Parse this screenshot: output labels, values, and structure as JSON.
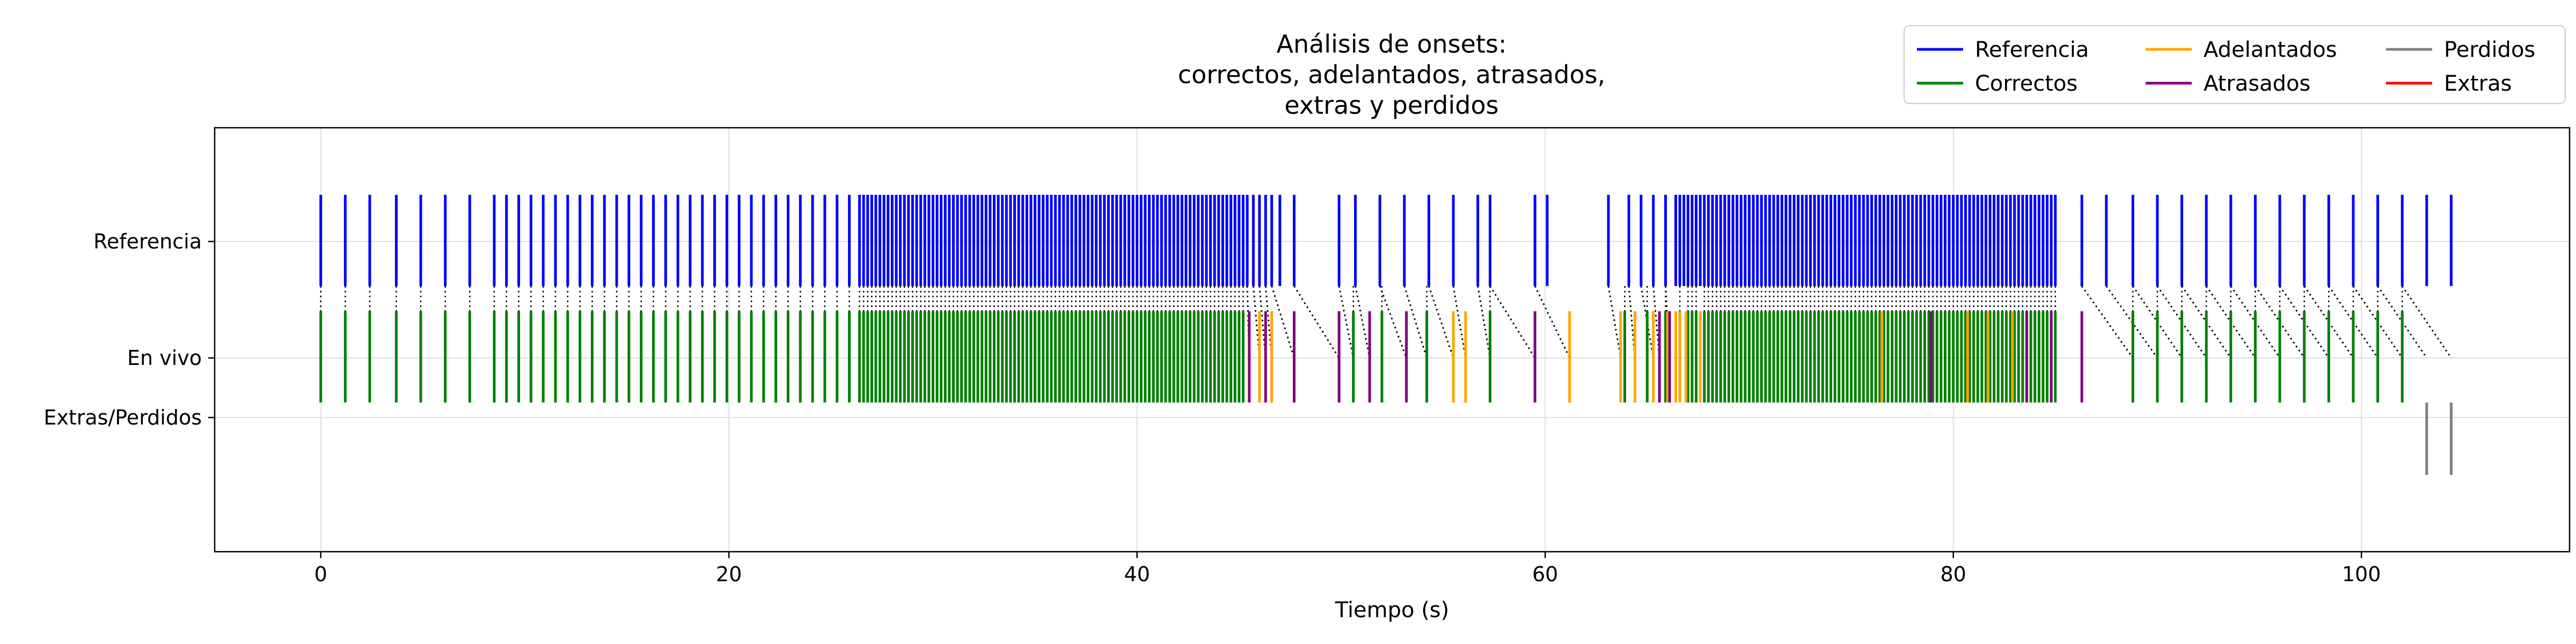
{
  "chart_data": {
    "type": "event-raster",
    "title_lines": [
      "Análisis de onsets:",
      "correctos, adelantados, atrasados,",
      "extras y perdidos"
    ],
    "xlabel": "Tiempo (s)",
    "xlim": [
      -5.2,
      110.2
    ],
    "x_ticks": [
      0,
      20,
      40,
      60,
      80,
      100
    ],
    "y_ticks": [
      "Referencia",
      "En vivo",
      "Extras/Perdidos"
    ],
    "grid": true,
    "legend_position": "top-right",
    "colors": {
      "Referencia": "#0000ff",
      "Correctos": "#008000",
      "Adelantados": "#ffa500",
      "Atrasados": "#800080",
      "Perdidos": "#808080",
      "Extras": "#ff0000",
      "match_line": "#000000"
    },
    "legend": [
      {
        "name": "Referencia",
        "color": "#0000ff"
      },
      {
        "name": "Correctos",
        "color": "#008000"
      },
      {
        "name": "Adelantados",
        "color": "#ffa500"
      },
      {
        "name": "Atrasados",
        "color": "#800080"
      },
      {
        "name": "Perdidos",
        "color": "#808080"
      },
      {
        "name": "Extras",
        "color": "#ff0000"
      }
    ],
    "series": {
      "referencia": [
        0.0,
        1.2,
        2.4,
        3.7,
        4.9,
        6.1,
        7.3,
        8.5,
        9.1,
        9.7,
        10.3,
        10.9,
        11.5,
        12.1,
        12.7,
        13.3,
        13.9,
        14.5,
        15.1,
        15.7,
        16.3,
        16.9,
        17.5,
        18.1,
        18.7,
        19.3,
        19.9,
        20.5,
        21.1,
        21.7,
        22.3,
        22.9,
        23.5,
        24.1,
        24.7,
        25.3,
        25.9,
        26.4,
        26.6,
        26.8,
        27.0,
        27.2,
        27.4,
        27.6,
        27.8,
        28.0,
        28.2,
        28.4,
        28.6,
        28.8,
        29.0,
        29.2,
        29.4,
        29.6,
        29.8,
        30.0,
        30.2,
        30.4,
        30.6,
        30.8,
        31.0,
        31.2,
        31.4,
        31.6,
        31.8,
        32.0,
        32.2,
        32.4,
        32.6,
        32.8,
        33.0,
        33.2,
        33.4,
        33.6,
        33.8,
        34.0,
        34.2,
        34.4,
        34.6,
        34.8,
        35.0,
        35.2,
        35.4,
        35.6,
        35.8,
        36.0,
        36.2,
        36.4,
        36.6,
        36.8,
        37.0,
        37.2,
        37.4,
        37.6,
        37.8,
        38.0,
        38.2,
        38.4,
        38.6,
        38.8,
        39.0,
        39.2,
        39.4,
        39.6,
        39.8,
        40.0,
        40.2,
        40.4,
        40.6,
        40.8,
        41.0,
        41.2,
        41.4,
        41.6,
        41.8,
        42.0,
        42.2,
        42.4,
        42.6,
        42.8,
        43.0,
        43.2,
        43.4,
        43.6,
        43.8,
        44.0,
        44.2,
        44.4,
        44.6,
        44.8,
        45.0,
        45.2,
        45.4,
        45.7,
        46.0,
        46.3,
        46.6,
        47.0,
        47.7,
        49.9,
        50.7,
        51.9,
        53.1,
        54.3,
        55.5,
        56.7,
        57.3,
        59.5,
        60.1,
        63.1,
        64.1,
        64.7,
        65.3,
        65.9,
        66.4,
        66.6,
        66.8,
        67.0,
        67.2,
        67.4,
        67.6,
        67.8,
        68.0,
        68.2,
        68.4,
        68.6,
        68.8,
        69.0,
        69.2,
        69.4,
        69.6,
        69.8,
        70.0,
        70.2,
        70.4,
        70.6,
        70.8,
        71.0,
        71.2,
        71.4,
        71.6,
        71.8,
        72.0,
        72.2,
        72.4,
        72.6,
        72.8,
        73.0,
        73.2,
        73.4,
        73.6,
        73.8,
        74.0,
        74.2,
        74.4,
        74.6,
        74.8,
        75.0,
        75.2,
        75.4,
        75.6,
        75.8,
        76.0,
        76.2,
        76.4,
        76.6,
        76.8,
        77.0,
        77.2,
        77.4,
        77.6,
        77.8,
        78.0,
        78.2,
        78.4,
        78.6,
        78.8,
        79.0,
        79.2,
        79.4,
        79.6,
        79.8,
        80.0,
        80.2,
        80.4,
        80.6,
        80.8,
        81.0,
        81.2,
        81.4,
        81.6,
        81.8,
        82.0,
        82.2,
        82.4,
        82.6,
        82.8,
        83.0,
        83.2,
        83.4,
        83.6,
        83.8,
        84.0,
        84.2,
        84.4,
        84.6,
        84.8,
        85.0,
        86.3,
        87.5,
        88.8,
        90.0,
        91.2,
        92.4,
        93.6,
        94.8,
        96.0,
        97.2,
        98.4,
        99.6,
        100.8,
        102.0,
        103.2,
        104.4
      ],
      "correctos": [
        0.0,
        1.2,
        2.4,
        3.7,
        4.9,
        6.1,
        7.3,
        8.5,
        9.1,
        9.7,
        10.3,
        10.9,
        11.5,
        12.1,
        12.7,
        13.3,
        13.9,
        14.5,
        15.1,
        15.7,
        16.3,
        16.9,
        17.5,
        18.1,
        18.7,
        19.3,
        19.9,
        20.5,
        21.1,
        21.7,
        22.3,
        22.9,
        23.5,
        24.1,
        24.7,
        25.3,
        25.9,
        26.4,
        26.6,
        26.8,
        27.0,
        27.2,
        27.4,
        27.6,
        27.8,
        28.0,
        28.2,
        28.4,
        28.6,
        28.8,
        29.0,
        29.2,
        29.4,
        29.6,
        29.8,
        30.0,
        30.2,
        30.4,
        30.6,
        30.8,
        31.0,
        31.2,
        31.4,
        31.6,
        31.8,
        32.0,
        32.2,
        32.4,
        32.6,
        32.8,
        33.0,
        33.2,
        33.4,
        33.6,
        33.8,
        34.0,
        34.2,
        34.4,
        34.6,
        34.8,
        35.0,
        35.2,
        35.4,
        35.6,
        35.8,
        36.0,
        36.2,
        36.4,
        36.6,
        36.8,
        37.0,
        37.2,
        37.4,
        37.6,
        37.8,
        38.0,
        38.2,
        38.4,
        38.6,
        38.8,
        39.0,
        39.2,
        39.4,
        39.6,
        39.8,
        40.0,
        40.2,
        40.4,
        40.6,
        40.8,
        41.0,
        41.2,
        41.4,
        41.6,
        41.8,
        42.0,
        42.2,
        42.4,
        42.6,
        42.8,
        43.0,
        43.2,
        43.4,
        43.6,
        43.8,
        44.0,
        44.2,
        44.4,
        44.6,
        44.8,
        45.0,
        45.2,
        50.6,
        52.0,
        54.2,
        57.3,
        63.9,
        65.0,
        65.9,
        66.6,
        67.0,
        67.2,
        67.4,
        67.8,
        68.0,
        68.2,
        68.4,
        68.6,
        68.8,
        69.0,
        69.2,
        69.4,
        69.6,
        69.8,
        70.0,
        70.2,
        70.4,
        70.6,
        70.8,
        71.0,
        71.2,
        71.4,
        71.6,
        71.8,
        72.0,
        72.2,
        72.4,
        72.6,
        72.8,
        73.0,
        73.2,
        73.4,
        73.6,
        73.8,
        74.0,
        74.2,
        74.4,
        74.6,
        74.8,
        75.0,
        75.2,
        75.4,
        75.6,
        75.8,
        76.0,
        76.2,
        76.4,
        76.6,
        76.8,
        77.0,
        77.2,
        77.4,
        77.6,
        77.8,
        78.0,
        78.2,
        78.4,
        78.6,
        78.8,
        79.0,
        79.2,
        79.4,
        79.6,
        79.8,
        80.0,
        80.2,
        80.4,
        80.6,
        80.8,
        81.0,
        81.2,
        81.4,
        81.6,
        81.8,
        82.0,
        82.2,
        82.4,
        82.6,
        82.8,
        83.0,
        83.2,
        83.4,
        83.6,
        83.8,
        84.0,
        84.2,
        84.4,
        84.6,
        84.8,
        85.0,
        88.8,
        90.0,
        91.2,
        92.4,
        93.6,
        94.8,
        96.0,
        97.2,
        98.4,
        99.6,
        100.8,
        102.0
      ],
      "adelantados": [
        46.0,
        46.6,
        55.5,
        56.1,
        61.2,
        63.7,
        64.4,
        65.3,
        66.0,
        66.4,
        66.6,
        66.9,
        67.6,
        76.5,
        80.7,
        81.7,
        82.9
      ],
      "atrasados": [
        45.5,
        46.3,
        47.7,
        49.9,
        51.4,
        53.2,
        59.5,
        65.6,
        66.1,
        78.9,
        83.6,
        84.8,
        86.3
      ],
      "perdidos": [
        103.2,
        104.4
      ],
      "extras": [],
      "matches": [
        [
          45.4,
          45.5
        ],
        [
          45.7,
          46.0
        ],
        [
          46.0,
          46.3
        ],
        [
          46.3,
          46.6
        ],
        [
          46.6,
          47.7
        ],
        [
          47.7,
          49.9
        ],
        [
          49.9,
          50.6
        ],
        [
          50.7,
          51.4
        ],
        [
          51.9,
          53.2
        ],
        [
          53.1,
          54.2
        ],
        [
          54.3,
          55.5
        ],
        [
          55.5,
          56.1
        ],
        [
          56.7,
          57.3
        ],
        [
          57.3,
          59.5
        ],
        [
          59.5,
          61.2
        ],
        [
          63.1,
          63.7
        ],
        [
          64.1,
          64.4
        ],
        [
          64.7,
          65.3
        ],
        [
          65.3,
          65.6
        ],
        [
          65.9,
          66.1
        ],
        [
          86.3,
          88.8
        ],
        [
          87.5,
          90.0
        ],
        [
          88.8,
          91.2
        ],
        [
          90.0,
          92.4
        ],
        [
          91.2,
          93.6
        ],
        [
          92.4,
          94.8
        ],
        [
          93.6,
          96.0
        ],
        [
          94.8,
          97.2
        ],
        [
          96.0,
          98.4
        ],
        [
          97.2,
          99.6
        ],
        [
          98.4,
          100.8
        ],
        [
          99.6,
          102.0
        ],
        [
          100.8,
          103.2
        ],
        [
          102.0,
          104.4
        ]
      ]
    }
  }
}
